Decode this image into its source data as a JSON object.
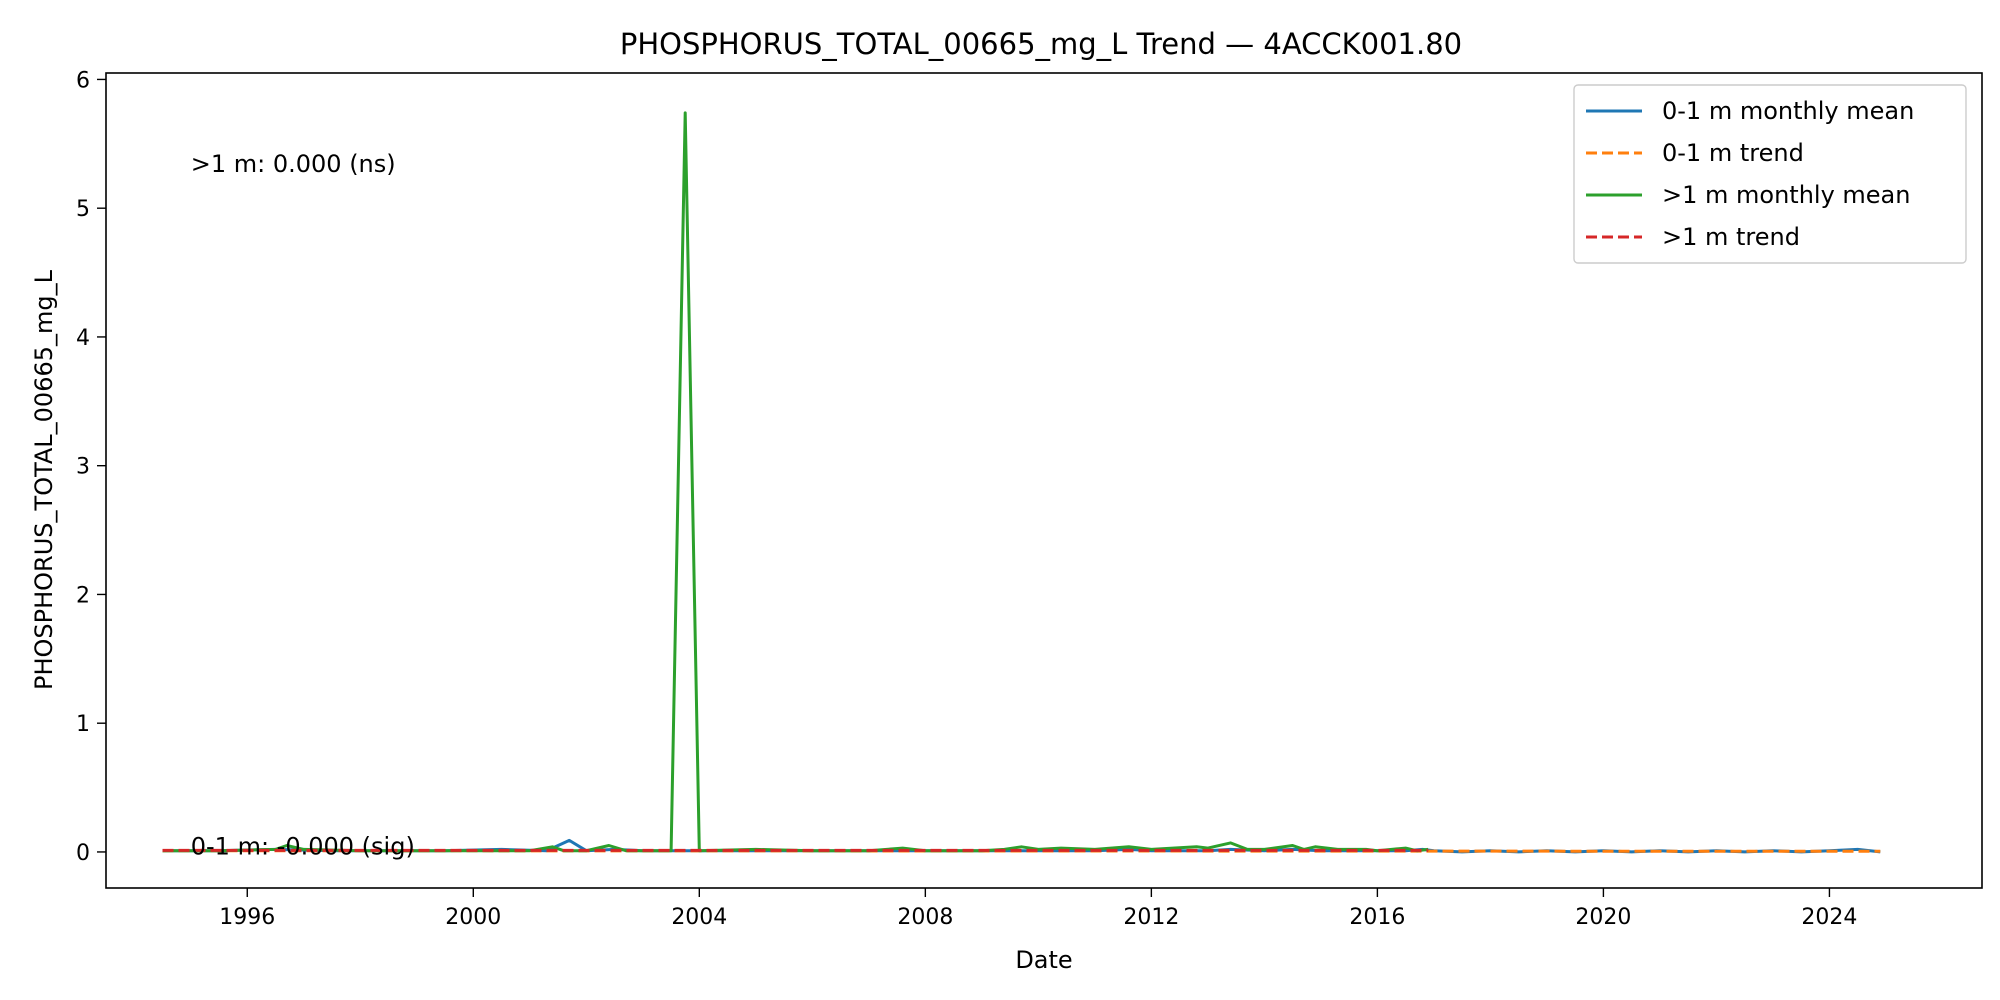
{
  "chart_data": {
    "type": "line",
    "title": "PHOSPHORUS_TOTAL_00665_mg_L Trend — 4ACCK001.80",
    "xlabel": "Date",
    "ylabel": "PHOSPHORUS_TOTAL_00665_mg_L",
    "xlim": [
      1993.5,
      2026.7
    ],
    "ylim": [
      -0.28,
      6.05
    ],
    "x_ticks": [
      1996,
      2000,
      2004,
      2008,
      2012,
      2016,
      2020,
      2024
    ],
    "y_ticks": [
      0,
      1,
      2,
      3,
      4,
      5,
      6
    ],
    "grid": false,
    "legend_position": "top-right",
    "annotations": [
      {
        "text": ">1 m: 0.000 (ns)",
        "x": 1995.0,
        "y": 5.28
      },
      {
        "text": "0-1 m: -0.000 (sig)",
        "x": 1995.0,
        "y": -0.02
      }
    ],
    "series": [
      {
        "name": "0-1 m monthly mean",
        "color": "#1f77b4",
        "style": "solid",
        "x": [
          1994.5,
          1995.5,
          1996.5,
          1997.5,
          1998.5,
          1999.5,
          2000.5,
          2001.3,
          2001.7,
          2002.0,
          2002.5,
          2003.0,
          2003.5,
          2004.0,
          2005.0,
          2006.0,
          2007.0,
          2007.6,
          2008.0,
          2009.0,
          2009.5,
          2010.0,
          2011.0,
          2011.6,
          2012.0,
          2013.0,
          2013.4,
          2014.0,
          2014.5,
          2015.0,
          2015.5,
          2016.0,
          2016.5,
          2016.8,
          2017.0,
          2017.5,
          2018.0,
          2018.5,
          2019.0,
          2019.5,
          2020.0,
          2020.5,
          2021.0,
          2021.5,
          2022.0,
          2022.5,
          2023.0,
          2023.5,
          2024.0,
          2024.5,
          2024.9
        ],
        "y": [
          0.01,
          0.01,
          0.02,
          0.01,
          0.01,
          0.01,
          0.02,
          0.01,
          0.09,
          0.01,
          0.02,
          0.01,
          0.01,
          0.01,
          0.01,
          0.01,
          0.01,
          0.01,
          0.01,
          0.01,
          0.01,
          0.01,
          0.01,
          0.02,
          0.01,
          0.01,
          0.02,
          0.01,
          0.02,
          0.01,
          0.01,
          0.01,
          0.01,
          0.02,
          0.01,
          0.0,
          0.01,
          0.0,
          0.01,
          0.0,
          0.01,
          0.0,
          0.01,
          0.0,
          0.01,
          0.0,
          0.01,
          0.0,
          0.01,
          0.02,
          0.0
        ]
      },
      {
        "name": "0-1 m trend",
        "color": "#ff7f0e",
        "style": "dashed",
        "x": [
          1994.5,
          2024.9
        ],
        "y": [
          0.01,
          0.005
        ]
      },
      {
        "name": ">1 m monthly mean",
        "color": "#2ca02c",
        "style": "solid",
        "x": [
          1994.5,
          1995.5,
          1996.5,
          1996.7,
          1997.0,
          1998.0,
          1999.0,
          2000.0,
          2001.0,
          2001.4,
          2001.6,
          2002.0,
          2002.4,
          2002.7,
          2003.0,
          2003.5,
          2003.75,
          2004.0,
          2005.0,
          2006.0,
          2007.0,
          2007.6,
          2008.0,
          2009.0,
          2009.4,
          2009.7,
          2010.0,
          2010.4,
          2011.0,
          2011.6,
          2012.0,
          2012.8,
          2013.0,
          2013.4,
          2013.7,
          2014.0,
          2014.5,
          2014.7,
          2014.9,
          2015.3,
          2015.8,
          2016.0,
          2016.5,
          2016.7,
          2016.9
        ],
        "y": [
          0.01,
          0.01,
          0.02,
          0.05,
          0.02,
          0.01,
          0.01,
          0.01,
          0.01,
          0.04,
          0.01,
          0.01,
          0.05,
          0.01,
          0.01,
          0.01,
          5.74,
          0.01,
          0.02,
          0.01,
          0.01,
          0.03,
          0.01,
          0.01,
          0.02,
          0.04,
          0.02,
          0.03,
          0.02,
          0.04,
          0.02,
          0.04,
          0.03,
          0.07,
          0.02,
          0.02,
          0.05,
          0.02,
          0.04,
          0.02,
          0.02,
          0.01,
          0.03,
          0.01,
          0.02
        ]
      },
      {
        "name": ">1 m trend",
        "color": "#d62728",
        "style": "dashed",
        "x": [
          1994.5,
          2016.9
        ],
        "y": [
          0.012,
          0.012
        ]
      }
    ]
  }
}
